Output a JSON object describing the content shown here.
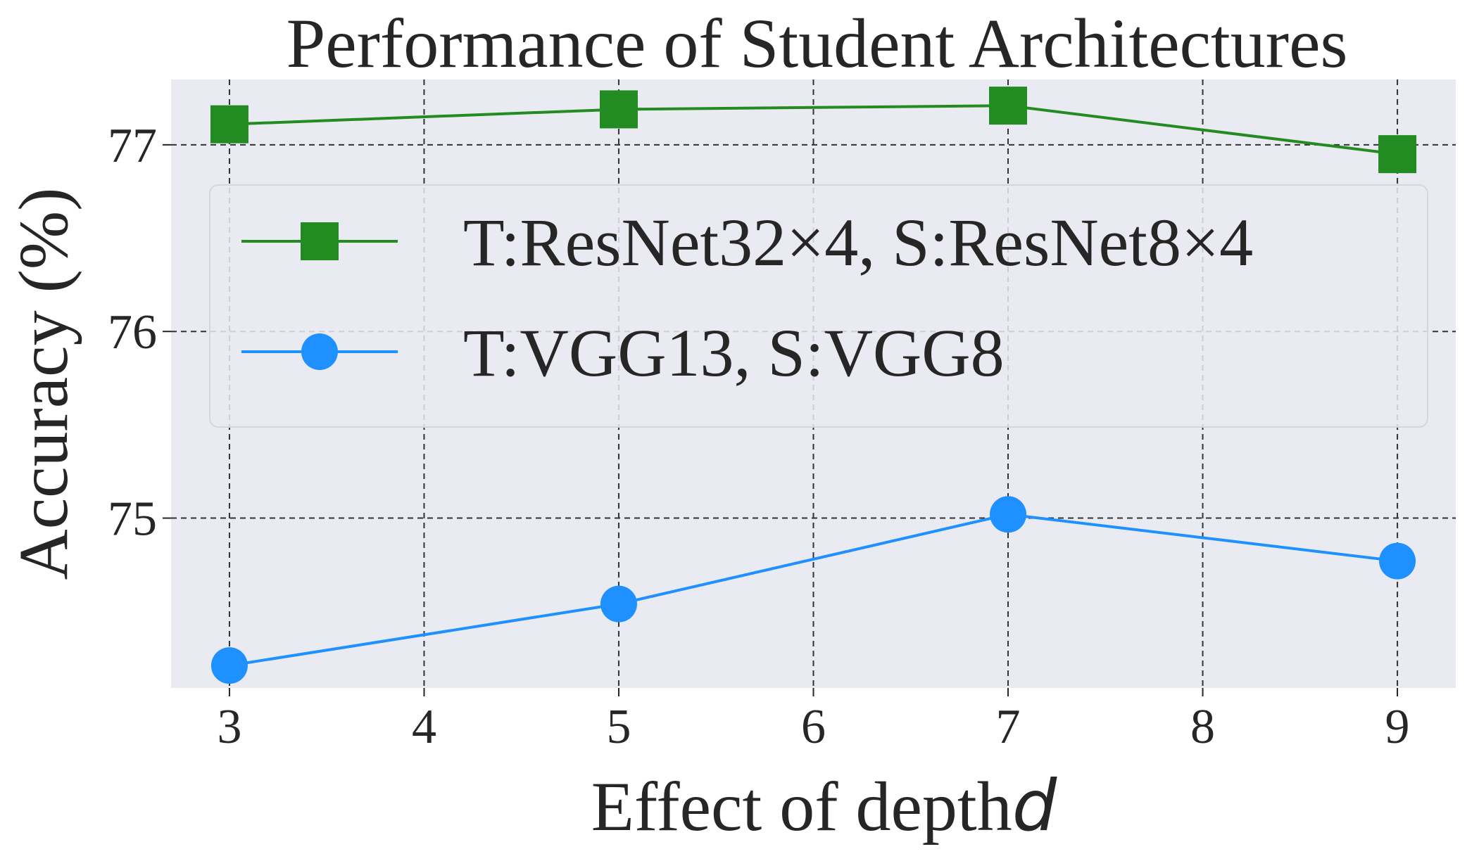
{
  "chart_data": {
    "type": "line",
    "title": "Performance of Student Architectures",
    "xlabel": "Effect of depth",
    "xlabel_var": "d",
    "ylabel": "Accuracy (%)",
    "xlim": [
      2.7,
      9.3
    ],
    "ylim": [
      74.09,
      77.35
    ],
    "xticks": [
      3,
      4,
      5,
      6,
      7,
      8,
      9
    ],
    "yticks": [
      75,
      76,
      77
    ],
    "grid": true,
    "legend_position": "upper-center",
    "series": [
      {
        "name": "T:ResNet32×4, S:ResNet8×4",
        "marker": "square",
        "color": "#228b22",
        "x": [
          3,
          5,
          7,
          9
        ],
        "y": [
          77.11,
          77.19,
          77.21,
          76.95
        ]
      },
      {
        "name": "T:VGG13, S:VGG8",
        "marker": "circle",
        "color": "#1e90ff",
        "x": [
          3,
          5,
          7,
          9
        ],
        "y": [
          74.21,
          74.54,
          75.02,
          74.77
        ]
      }
    ]
  },
  "colors": {
    "plot_background": "#eaeaf2",
    "text": "#262626",
    "grid": "#333333"
  }
}
